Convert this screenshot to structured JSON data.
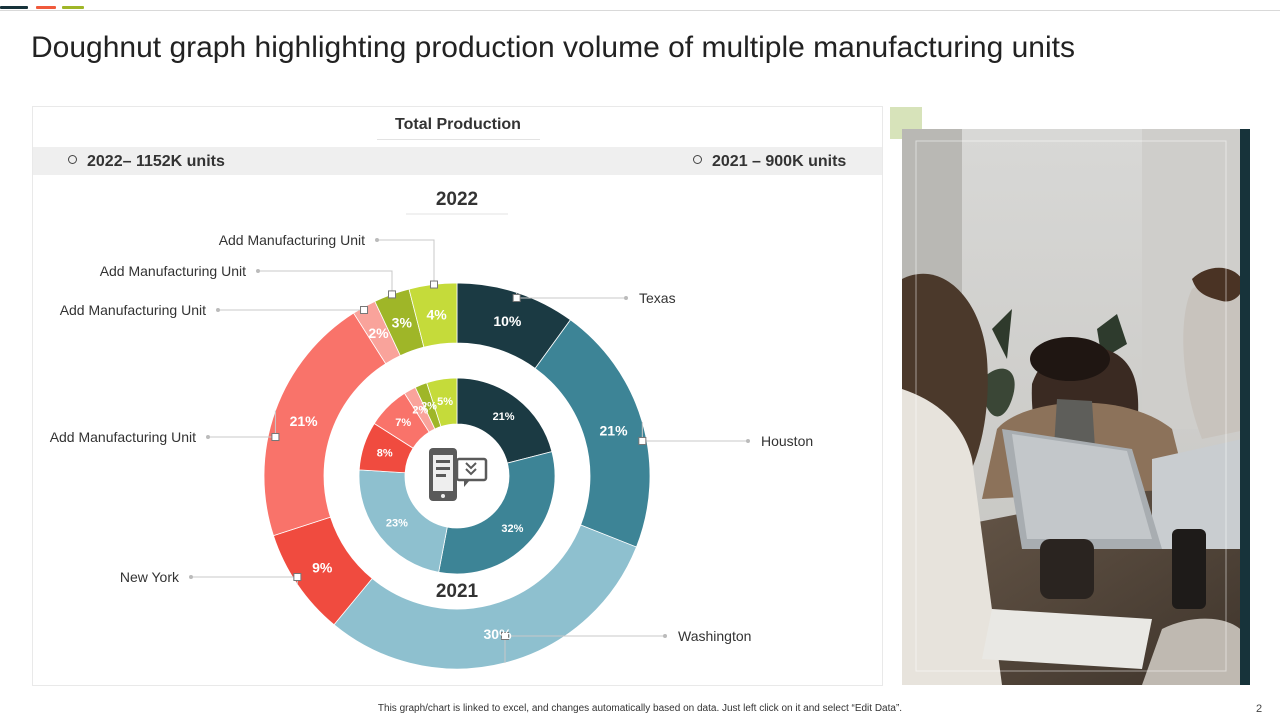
{
  "title": "Doughnut graph highlighting production volume of multiple manufacturing units",
  "panel_heading": "Total Production",
  "legend": [
    {
      "label": "2022– 1152K units"
    },
    {
      "label": "2021 – 900K units"
    }
  ],
  "footer_note": "This graph/chart is linked to excel, and changes automatically based on data. Just left click on it and select “Edit Data”.",
  "page_number": "2",
  "icon": "tablet-download-icon",
  "chart_data": {
    "type": "doughnut",
    "categories": [
      "Texas",
      "Houston",
      "Washington",
      "New York",
      "Add Manufacturing Unit",
      "Add Manufacturing Unit",
      "Add Manufacturing Unit",
      "Add Manufacturing Unit"
    ],
    "colors": [
      "#1b3a43",
      "#3d8496",
      "#8ec0cf",
      "#f04b3f",
      "#f9736a",
      "#f9a39b",
      "#9fb628",
      "#c5db3a"
    ],
    "series": [
      {
        "name": "2022",
        "values": [
          10,
          21,
          30,
          9,
          21,
          2,
          3,
          4
        ],
        "labels": [
          "10%",
          "21%",
          "30%",
          "9%",
          "21%",
          "2%",
          "3%",
          "4%"
        ]
      },
      {
        "name": "2021",
        "values": [
          21,
          32,
          23,
          8,
          7,
          2,
          2,
          5
        ],
        "labels": [
          "21%",
          "32%",
          "23%",
          "8%",
          "7%",
          "2%",
          "2%",
          "5%"
        ]
      }
    ]
  }
}
